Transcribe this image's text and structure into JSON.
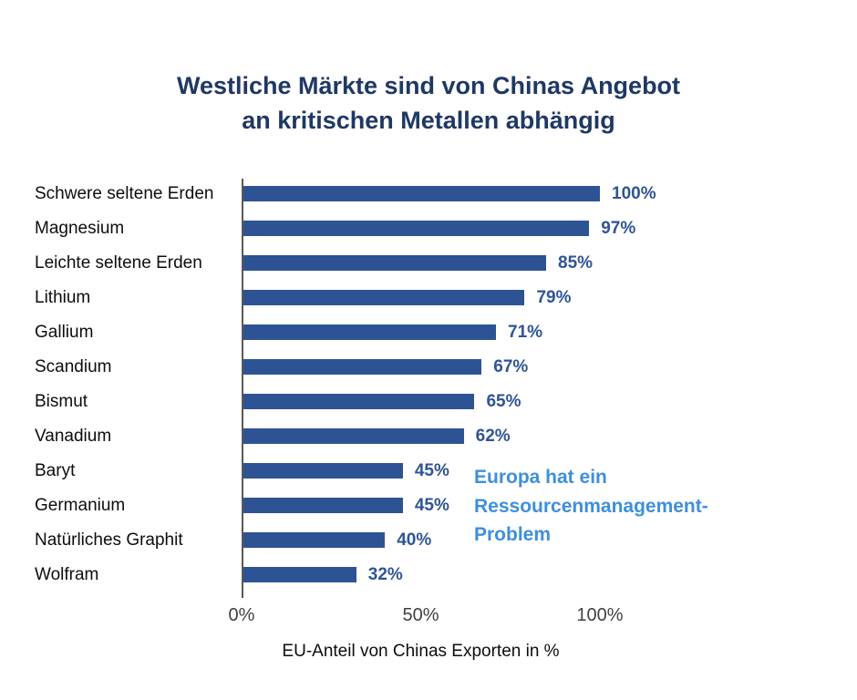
{
  "title": {
    "line1": "Westliche Märkte sind von Chinas Angebot",
    "line2": "an kritischen Metallen abhängig"
  },
  "chart_data": {
    "type": "bar",
    "orientation": "horizontal",
    "title": "Westliche Märkte sind von Chinas Angebot an kritischen Metallen abhängig",
    "categories": [
      "Schwere seltene Erden",
      "Magnesium",
      "Leichte seltene Erden",
      "Lithium",
      "Gallium",
      "Scandium",
      "Bismut",
      "Vanadium",
      "Baryt",
      "Germanium",
      "Natürliches Graphit",
      "Wolfram"
    ],
    "values": [
      100,
      97,
      85,
      79,
      71,
      67,
      65,
      62,
      45,
      45,
      40,
      32
    ],
    "value_labels": [
      "100%",
      "97%",
      "85%",
      "79%",
      "71%",
      "67%",
      "65%",
      "62%",
      "45%",
      "45%",
      "40%",
      "32%"
    ],
    "xlabel": "EU-Anteil von Chinas Exporten in %",
    "x_ticks": [
      "0%",
      "50%",
      "100%"
    ],
    "x_tick_values": [
      0,
      50,
      100
    ],
    "xlim": [
      0,
      100
    ],
    "grid": false,
    "legend": "none",
    "bar_color": "#2E5395",
    "value_label_color": "#2F5496",
    "title_color": "#1F3864",
    "axis_line_color": "#595959",
    "annotation": {
      "text": "Europa hat ein Ressourcenmanagement-Problem",
      "lines": [
        "Europa hat ein",
        "Ressourcenmanagement-",
        "Problem"
      ],
      "color": "#3E8FDB"
    }
  }
}
